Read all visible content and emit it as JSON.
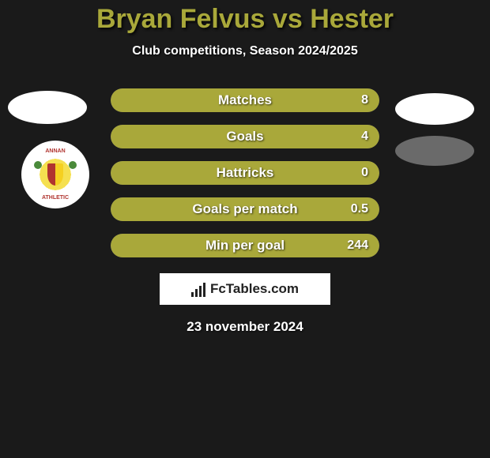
{
  "title": {
    "player1": "Bryan Felvus",
    "vs": "vs",
    "player2": "Hester",
    "color": "#a9a83a"
  },
  "subtitle": "Club competitions, Season 2024/2025",
  "colors": {
    "bar_primary": "#a9a83a",
    "bar_secondary": "#6b6b6b",
    "background": "#1a1a1a",
    "text": "#ffffff"
  },
  "stats": [
    {
      "label": "Matches",
      "value": "8",
      "left_pct": 100,
      "left_color": "#a9a83a",
      "right_color": "#6b6b6b"
    },
    {
      "label": "Goals",
      "value": "4",
      "left_pct": 100,
      "left_color": "#a9a83a",
      "right_color": "#6b6b6b"
    },
    {
      "label": "Hattricks",
      "value": "0",
      "left_pct": 100,
      "left_color": "#a9a83a",
      "right_color": "#6b6b6b"
    },
    {
      "label": "Goals per match",
      "value": "0.5",
      "left_pct": 100,
      "left_color": "#a9a83a",
      "right_color": "#6b6b6b"
    },
    {
      "label": "Min per goal",
      "value": "244",
      "left_pct": 100,
      "left_color": "#a9a83a",
      "right_color": "#6b6b6b"
    }
  ],
  "club": {
    "name_top": "ANNAN",
    "name_bottom": "ATHLETIC"
  },
  "site": {
    "name": "FcTables.com"
  },
  "date": "23 november 2024"
}
